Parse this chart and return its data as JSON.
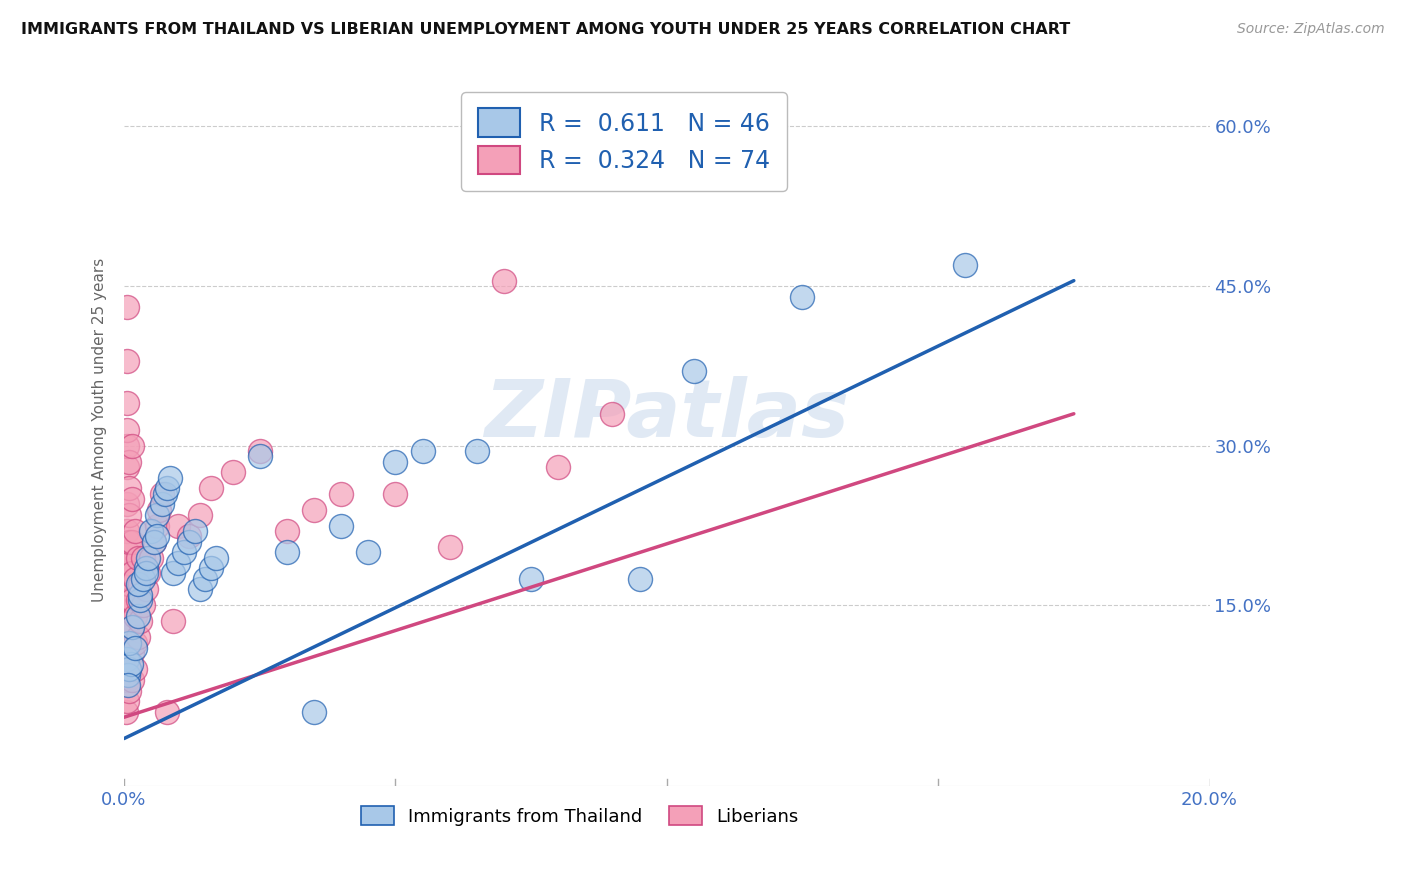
{
  "title": "IMMIGRANTS FROM THAILAND VS LIBERIAN UNEMPLOYMENT AMONG YOUTH UNDER 25 YEARS CORRELATION CHART",
  "source": "Source: ZipAtlas.com",
  "ylabel": "Unemployment Among Youth under 25 years",
  "xlim": [
    0.0,
    0.2
  ],
  "ylim": [
    -0.02,
    0.65
  ],
  "xtick_positions": [
    0.0,
    0.05,
    0.1,
    0.15,
    0.2
  ],
  "xtick_labels": [
    "0.0%",
    "",
    "",
    "",
    "20.0%"
  ],
  "ytick_positions": [
    0.15,
    0.3,
    0.45,
    0.6
  ],
  "ytick_labels": [
    "15.0%",
    "30.0%",
    "45.0%",
    "60.0%"
  ],
  "blue_R": 0.611,
  "blue_N": 46,
  "pink_R": 0.324,
  "pink_N": 74,
  "blue_color": "#a8c8e8",
  "pink_color": "#f4a0b8",
  "trend_blue": "#2060b0",
  "trend_pink": "#d04880",
  "blue_scatter": [
    [
      0.0005,
      0.1
    ],
    [
      0.0008,
      0.085
    ],
    [
      0.001,
      0.09
    ],
    [
      0.0012,
      0.095
    ],
    [
      0.001,
      0.115
    ],
    [
      0.0015,
      0.13
    ],
    [
      0.002,
      0.11
    ],
    [
      0.0008,
      0.075
    ],
    [
      0.0025,
      0.14
    ],
    [
      0.003,
      0.155
    ],
    [
      0.003,
      0.16
    ],
    [
      0.0025,
      0.17
    ],
    [
      0.0035,
      0.175
    ],
    [
      0.004,
      0.185
    ],
    [
      0.004,
      0.18
    ],
    [
      0.0045,
      0.195
    ],
    [
      0.005,
      0.22
    ],
    [
      0.0055,
      0.21
    ],
    [
      0.006,
      0.235
    ],
    [
      0.006,
      0.215
    ],
    [
      0.007,
      0.245
    ],
    [
      0.0075,
      0.255
    ],
    [
      0.008,
      0.26
    ],
    [
      0.0085,
      0.27
    ],
    [
      0.009,
      0.18
    ],
    [
      0.01,
      0.19
    ],
    [
      0.011,
      0.2
    ],
    [
      0.012,
      0.21
    ],
    [
      0.013,
      0.22
    ],
    [
      0.014,
      0.165
    ],
    [
      0.015,
      0.175
    ],
    [
      0.016,
      0.185
    ],
    [
      0.017,
      0.195
    ],
    [
      0.025,
      0.29
    ],
    [
      0.03,
      0.2
    ],
    [
      0.035,
      0.05
    ],
    [
      0.04,
      0.225
    ],
    [
      0.045,
      0.2
    ],
    [
      0.05,
      0.285
    ],
    [
      0.055,
      0.295
    ],
    [
      0.065,
      0.295
    ],
    [
      0.075,
      0.175
    ],
    [
      0.095,
      0.175
    ],
    [
      0.105,
      0.37
    ],
    [
      0.125,
      0.44
    ],
    [
      0.155,
      0.47
    ]
  ],
  "pink_scatter": [
    [
      0.0003,
      0.05
    ],
    [
      0.0005,
      0.06
    ],
    [
      0.0005,
      0.08
    ],
    [
      0.0005,
      0.1
    ],
    [
      0.0005,
      0.12
    ],
    [
      0.0005,
      0.13
    ],
    [
      0.0005,
      0.145
    ],
    [
      0.0005,
      0.155
    ],
    [
      0.0005,
      0.17
    ],
    [
      0.0005,
      0.18
    ],
    [
      0.0005,
      0.19
    ],
    [
      0.0005,
      0.2
    ],
    [
      0.0005,
      0.22
    ],
    [
      0.0005,
      0.245
    ],
    [
      0.0005,
      0.28
    ],
    [
      0.0005,
      0.3
    ],
    [
      0.0005,
      0.315
    ],
    [
      0.0005,
      0.34
    ],
    [
      0.0005,
      0.38
    ],
    [
      0.0005,
      0.43
    ],
    [
      0.001,
      0.07
    ],
    [
      0.001,
      0.09
    ],
    [
      0.001,
      0.115
    ],
    [
      0.001,
      0.135
    ],
    [
      0.001,
      0.155
    ],
    [
      0.001,
      0.17
    ],
    [
      0.001,
      0.19
    ],
    [
      0.001,
      0.21
    ],
    [
      0.001,
      0.235
    ],
    [
      0.001,
      0.26
    ],
    [
      0.001,
      0.285
    ],
    [
      0.0015,
      0.08
    ],
    [
      0.0015,
      0.105
    ],
    [
      0.0015,
      0.13
    ],
    [
      0.0015,
      0.155
    ],
    [
      0.0015,
      0.18
    ],
    [
      0.0015,
      0.21
    ],
    [
      0.0015,
      0.25
    ],
    [
      0.0015,
      0.3
    ],
    [
      0.002,
      0.09
    ],
    [
      0.002,
      0.115
    ],
    [
      0.002,
      0.14
    ],
    [
      0.002,
      0.175
    ],
    [
      0.002,
      0.22
    ],
    [
      0.0025,
      0.12
    ],
    [
      0.0025,
      0.155
    ],
    [
      0.0025,
      0.195
    ],
    [
      0.003,
      0.135
    ],
    [
      0.003,
      0.17
    ],
    [
      0.0035,
      0.15
    ],
    [
      0.0035,
      0.195
    ],
    [
      0.004,
      0.165
    ],
    [
      0.0045,
      0.18
    ],
    [
      0.005,
      0.195
    ],
    [
      0.0055,
      0.21
    ],
    [
      0.006,
      0.225
    ],
    [
      0.0065,
      0.24
    ],
    [
      0.007,
      0.255
    ],
    [
      0.008,
      0.05
    ],
    [
      0.009,
      0.135
    ],
    [
      0.01,
      0.225
    ],
    [
      0.012,
      0.215
    ],
    [
      0.014,
      0.235
    ],
    [
      0.016,
      0.26
    ],
    [
      0.02,
      0.275
    ],
    [
      0.025,
      0.295
    ],
    [
      0.03,
      0.22
    ],
    [
      0.035,
      0.24
    ],
    [
      0.04,
      0.255
    ],
    [
      0.05,
      0.255
    ],
    [
      0.06,
      0.205
    ],
    [
      0.07,
      0.455
    ],
    [
      0.08,
      0.28
    ],
    [
      0.09,
      0.33
    ]
  ],
  "blue_trend_x": [
    0.0,
    0.175
  ],
  "blue_trend_y": [
    0.025,
    0.455
  ],
  "pink_trend_x": [
    0.0,
    0.175
  ],
  "pink_trend_y": [
    0.045,
    0.33
  ],
  "watermark": "ZIPatlas",
  "background_color": "#ffffff",
  "grid_color": "#cccccc",
  "legend_blue_label": "R =  0.611   N = 46",
  "legend_pink_label": "R =  0.324   N = 74",
  "bottom_legend_blue": "Immigrants from Thailand",
  "bottom_legend_pink": "Liberians"
}
